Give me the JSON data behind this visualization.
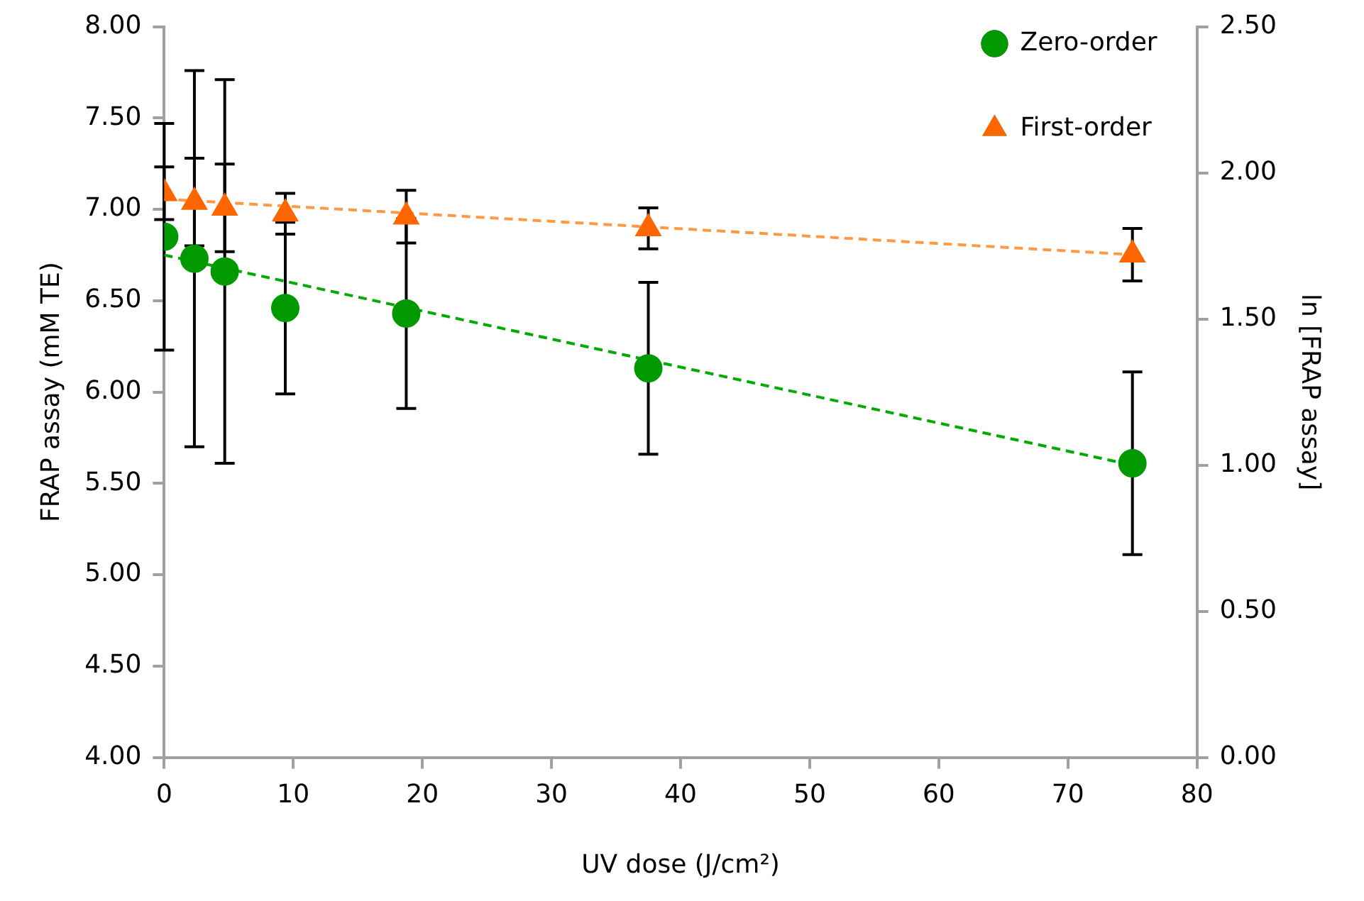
{
  "chart_data": {
    "type": "scatter",
    "xlabel": "UV dose (J/cm²)",
    "ylabel": "FRAP assay (mM TE)",
    "y2label": "ln [FRAP assay]",
    "xlim": [
      0,
      80
    ],
    "xticks": [
      0,
      10,
      20,
      30,
      40,
      50,
      60,
      70,
      80
    ],
    "ylim": [
      4,
      8
    ],
    "yticks": [
      {
        "value": 4,
        "label": "4.00"
      },
      {
        "value": 4.5,
        "label": "4.50"
      },
      {
        "value": 5,
        "label": "5.00"
      },
      {
        "value": 5.5,
        "label": "5.50"
      },
      {
        "value": 6,
        "label": "6.00"
      },
      {
        "value": 6.5,
        "label": "6.50"
      },
      {
        "value": 7,
        "label": "7.00"
      },
      {
        "value": 7.5,
        "label": "7.50"
      },
      {
        "value": 8,
        "label": "8.00"
      }
    ],
    "y2lim": [
      0,
      2.5
    ],
    "y2ticks": [
      {
        "value": 0,
        "label": "0.00"
      },
      {
        "value": 0.5,
        "label": "0.50"
      },
      {
        "value": 1,
        "label": "1.00"
      },
      {
        "value": 1.5,
        "label": "1.50"
      },
      {
        "value": 2,
        "label": "2.00"
      },
      {
        "value": 2.5,
        "label": "2.50"
      }
    ],
    "grid": false,
    "legend": "top right",
    "series": [
      {
        "name": "Zero-order",
        "marker": "circle",
        "color": "#009900",
        "x": [
          0,
          2.34,
          4.69,
          9.38,
          18.75,
          37.5,
          75
        ],
        "values": [
          6.85,
          6.73,
          6.66,
          6.46,
          6.43,
          6.13,
          5.61
        ],
        "errors": [
          0.62,
          1.03,
          1.05,
          0.47,
          0.52,
          0.47,
          0.5
        ]
      },
      {
        "name": "First-order",
        "marker": "triangle",
        "color": "#ff6600",
        "axis": "y2",
        "x": [
          0,
          2.34,
          4.69,
          9.38,
          18.75,
          37.5,
          75
        ],
        "values": [
          1.93,
          1.9,
          1.88,
          1.86,
          1.85,
          1.81,
          1.72
        ],
        "errors": [
          0.09,
          0.15,
          0.15,
          0.07,
          0.09,
          0.07,
          0.09
        ]
      },
      {
        "type": "line",
        "marker": "none",
        "line_style": "dashed",
        "color": "#00aa00",
        "x": [
          0,
          75
        ],
        "values": [
          6.75,
          5.6
        ]
      },
      {
        "type": "line",
        "marker": "none",
        "line_style": "dashed",
        "color": "#ff9944",
        "axis": "y2",
        "x": [
          0,
          75
        ],
        "values": [
          1.91,
          1.72
        ]
      }
    ]
  }
}
